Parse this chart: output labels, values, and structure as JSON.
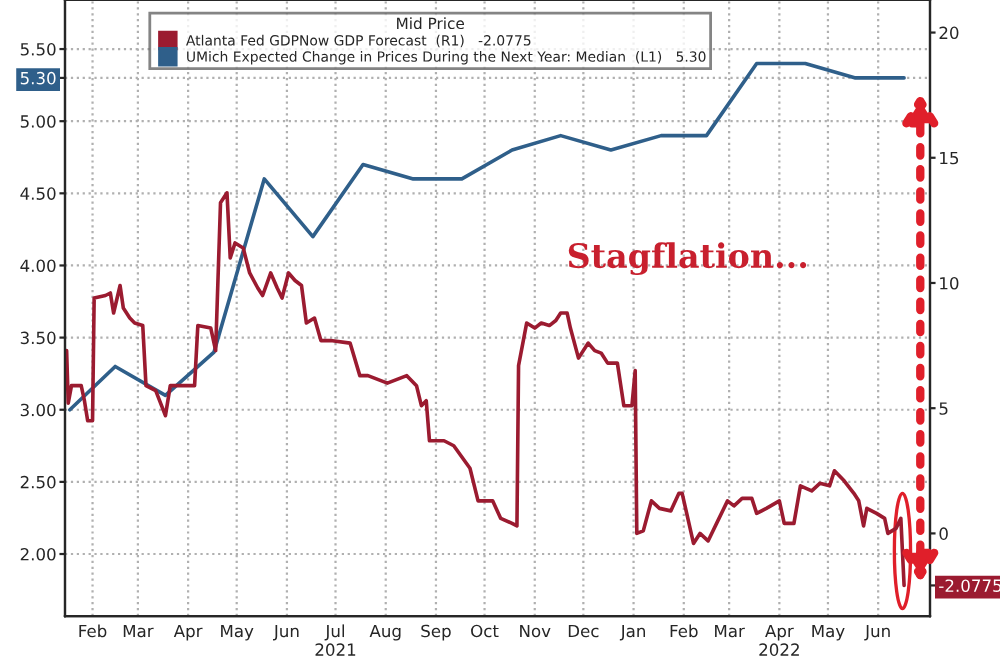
{
  "chart_data": {
    "type": "line",
    "legend_title": "Mid Price",
    "annotations": [
      "Stagflation..."
    ],
    "xlim": [
      "2021-01-29",
      "2022-07-17"
    ],
    "xticks": [
      {
        "value": "2021-02-15",
        "label": "Feb"
      },
      {
        "value": "2021-03-15",
        "label": "Mar"
      },
      {
        "value": "2021-04-15",
        "label": "Apr"
      },
      {
        "value": "2021-05-15",
        "label": "May"
      },
      {
        "value": "2021-06-15",
        "label": "Jun"
      },
      {
        "value": "2021-07-15",
        "label": "Jul\n2021"
      },
      {
        "value": "2021-08-15",
        "label": "Aug"
      },
      {
        "value": "2021-09-15",
        "label": "Sep"
      },
      {
        "value": "2021-10-15",
        "label": "Oct"
      },
      {
        "value": "2021-11-15",
        "label": "Nov"
      },
      {
        "value": "2021-12-15",
        "label": "Dec"
      },
      {
        "value": "2022-01-15",
        "label": "Jan"
      },
      {
        "value": "2022-02-15",
        "label": "Feb"
      },
      {
        "value": "2022-03-15",
        "label": "Mar"
      },
      {
        "value": "2022-04-15",
        "label": "Apr\n2022"
      },
      {
        "value": "2022-05-15",
        "label": "May"
      },
      {
        "value": "2022-06-15",
        "label": "Jun"
      }
    ],
    "ylim": [
      1.57,
      5.84
    ],
    "yticks": [
      {
        "value": 2.0,
        "label": "2.00"
      },
      {
        "value": 2.5,
        "label": "2.50"
      },
      {
        "value": 3.0,
        "label": "3.00"
      },
      {
        "value": 3.5,
        "label": "3.50"
      },
      {
        "value": 4.0,
        "label": "4.00"
      },
      {
        "value": 4.5,
        "label": "4.50"
      },
      {
        "value": 5.0,
        "label": "5.00"
      },
      {
        "value": 5.3,
        "label": "5.30"
      },
      {
        "value": 5.5,
        "label": "5.50"
      }
    ],
    "y2lim": [
      -3.3,
      21.3
    ],
    "y2ticks": [
      {
        "value": -2.0775,
        "label": "-2.0775"
      },
      0,
      5,
      10,
      15,
      20
    ],
    "grid": true,
    "legend": "top left",
    "series": [
      {
        "name": "Atlanta Fed GDPNow GDP Forecast  (R1)   -2.0775",
        "color": "#9b1b30",
        "axis": "y2",
        "x": [
          "2021-01-30",
          "2021-01-31",
          "2021-02-02",
          "2021-02-08",
          "2021-02-10",
          "2021-02-12",
          "2021-02-15",
          "2021-02-16",
          "2021-02-23",
          "2021-02-26",
          "2021-02-28",
          "2021-03-04",
          "2021-03-06",
          "2021-03-10",
          "2021-03-13",
          "2021-03-18",
          "2021-03-20",
          "2021-03-26",
          "2021-04-01",
          "2021-04-04",
          "2021-04-14",
          "2021-04-19",
          "2021-04-21",
          "2021-04-29",
          "2021-05-02",
          "2021-05-05",
          "2021-05-09",
          "2021-05-11",
          "2021-05-14",
          "2021-05-19",
          "2021-05-23",
          "2021-05-28",
          "2021-05-31",
          "2021-06-05",
          "2021-06-09",
          "2021-06-12",
          "2021-06-16",
          "2021-06-20",
          "2021-06-24",
          "2021-06-27",
          "2021-07-02",
          "2021-07-06",
          "2021-07-12",
          "2021-07-24",
          "2021-07-30",
          "2021-08-04",
          "2021-08-16",
          "2021-08-28",
          "2021-09-03",
          "2021-09-06",
          "2021-09-09",
          "2021-09-11",
          "2021-09-20",
          "2021-09-26",
          "2021-10-06",
          "2021-10-11",
          "2021-10-20",
          "2021-10-25",
          "2021-11-01",
          "2021-11-04",
          "2021-11-05",
          "2021-11-10",
          "2021-11-15",
          "2021-11-19",
          "2021-11-24",
          "2021-11-28",
          "2021-12-01",
          "2021-12-05",
          "2021-12-07",
          "2021-12-12",
          "2021-12-18",
          "2021-12-22",
          "2021-12-26",
          "2021-12-30",
          "2022-01-05",
          "2022-01-09",
          "2022-01-14",
          "2022-01-16",
          "2022-01-17",
          "2022-01-21",
          "2022-01-26",
          "2022-01-31",
          "2022-02-07",
          "2022-02-12",
          "2022-02-14",
          "2022-02-21",
          "2022-02-25",
          "2022-03-02",
          "2022-03-08",
          "2022-03-14",
          "2022-03-18",
          "2022-03-23",
          "2022-03-29",
          "2022-04-01",
          "2022-04-07",
          "2022-04-15",
          "2022-04-18",
          "2022-04-24",
          "2022-04-28",
          "2022-05-05",
          "2022-05-10",
          "2022-05-16",
          "2022-05-19",
          "2022-05-25",
          "2022-05-31",
          "2022-06-03",
          "2022-06-06",
          "2022-06-08",
          "2022-06-14",
          "2022-06-19",
          "2022-06-21",
          "2022-06-26",
          "2022-06-29",
          "2022-07-01"
        ],
        "values": [
          7.3,
          5.2,
          5.9,
          5.9,
          5.3,
          4.5,
          4.5,
          9.4,
          9.5,
          9.6,
          8.8,
          9.9,
          9.0,
          8.6,
          8.4,
          8.3,
          5.9,
          5.7,
          4.7,
          5.9,
          5.9,
          5.9,
          8.3,
          8.2,
          7.3,
          13.2,
          13.6,
          11.0,
          11.6,
          11.4,
          10.4,
          9.8,
          9.5,
          10.4,
          9.8,
          9.4,
          10.4,
          10.1,
          9.9,
          8.4,
          8.6,
          7.7,
          7.7,
          7.6,
          6.3,
          6.3,
          6.0,
          6.3,
          5.9,
          5.1,
          5.3,
          3.7,
          3.7,
          3.5,
          2.6,
          1.3,
          1.3,
          0.6,
          0.4,
          0.3,
          6.7,
          8.4,
          8.2,
          8.4,
          8.3,
          8.5,
          8.8,
          8.8,
          8.2,
          7.0,
          7.6,
          7.3,
          7.2,
          6.8,
          6.8,
          5.1,
          5.1,
          6.5,
          0.0,
          0.1,
          1.3,
          1.0,
          0.9,
          1.6,
          1.6,
          -0.4,
          0.0,
          -0.3,
          0.5,
          1.3,
          1.1,
          1.4,
          1.4,
          0.8,
          1.0,
          1.3,
          0.4,
          0.4,
          1.9,
          1.7,
          2.0,
          1.9,
          2.5,
          2.1,
          1.6,
          1.3,
          0.3,
          1.0,
          0.8,
          0.6,
          0.0,
          0.2,
          0.6,
          -2.0775
        ]
      },
      {
        "name": "UMich Expected Change in Prices During the Next Year: Median  (L1)   5.30",
        "color": "#2f5f8a",
        "x": [
          "2021-02-01",
          "2021-03-01",
          "2021-04-01",
          "2021-05-01",
          "2021-06-01",
          "2021-07-01",
          "2021-08-01",
          "2021-09-01",
          "2021-10-01",
          "2021-11-01",
          "2021-12-01",
          "2022-01-01",
          "2022-02-01",
          "2022-03-01",
          "2022-04-01",
          "2022-05-01",
          "2022-06-01",
          "2022-07-01"
        ],
        "values": [
          3.0,
          3.3,
          3.1,
          3.4,
          4.6,
          4.2,
          4.7,
          4.6,
          4.6,
          4.8,
          4.9,
          4.8,
          4.9,
          4.9,
          5.4,
          5.4,
          5.3,
          5.3
        ]
      }
    ]
  }
}
